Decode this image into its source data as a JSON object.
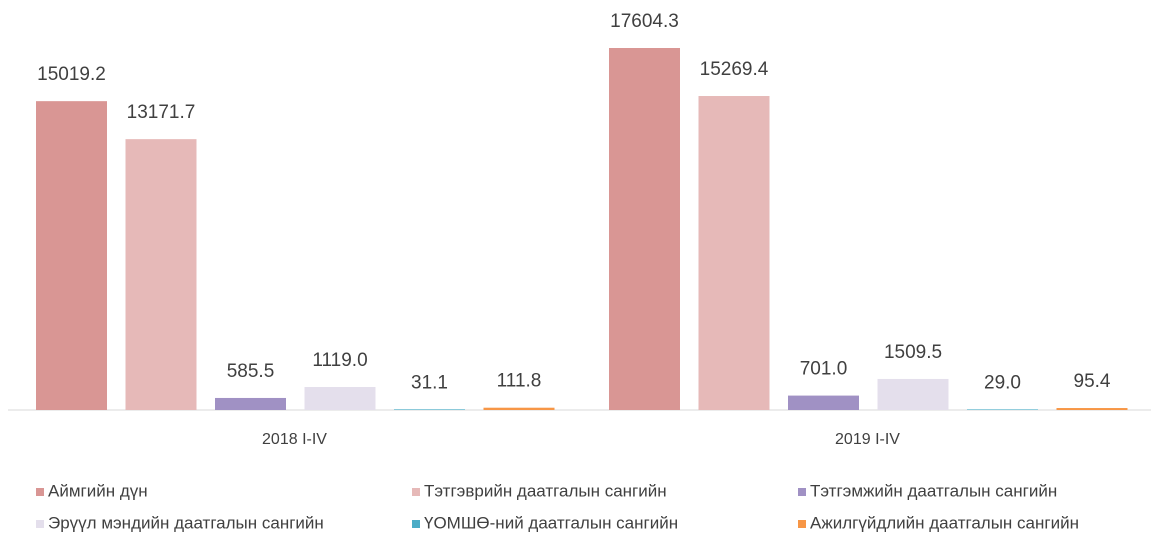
{
  "chart_data": {
    "type": "bar",
    "categories": [
      "2018 I-IV",
      "2019 I-IV"
    ],
    "series": [
      {
        "name": "Аймгийн дүн",
        "color": "#d99694",
        "values": [
          15019.2,
          17604.3
        ],
        "value_labels": [
          "15019.2",
          "17604.3"
        ]
      },
      {
        "name": "Тэтгэврийн даатгалын сангийн",
        "color": "#e6b9b8",
        "values": [
          13171.7,
          15269.4
        ],
        "value_labels": [
          "13171.7",
          "15269.4"
        ]
      },
      {
        "name": "Тэтгэмжийн даатгалын сангийн",
        "color": "#a091c4",
        "values": [
          585.5,
          701.0
        ],
        "value_labels": [
          "585.5",
          "701.0"
        ]
      },
      {
        "name": "Эрүүл мэндийн даатгалын сангийн",
        "color": "#e4dfec",
        "values": [
          1119.0,
          1509.5
        ],
        "value_labels": [
          "1119.0",
          "1509.5"
        ]
      },
      {
        "name": "ҮОМШӨ-ний даатгалын сангийн",
        "color": "#4bacc6",
        "values": [
          31.1,
          29.0
        ],
        "value_labels": [
          "31.1",
          "29.0"
        ]
      },
      {
        "name": "Ажилгүйдлийн даатгалын сангийн",
        "color": "#f79646",
        "values": [
          111.8,
          95.4
        ],
        "value_labels": [
          "111.8",
          "95.4"
        ]
      }
    ],
    "legend": "bottom"
  }
}
